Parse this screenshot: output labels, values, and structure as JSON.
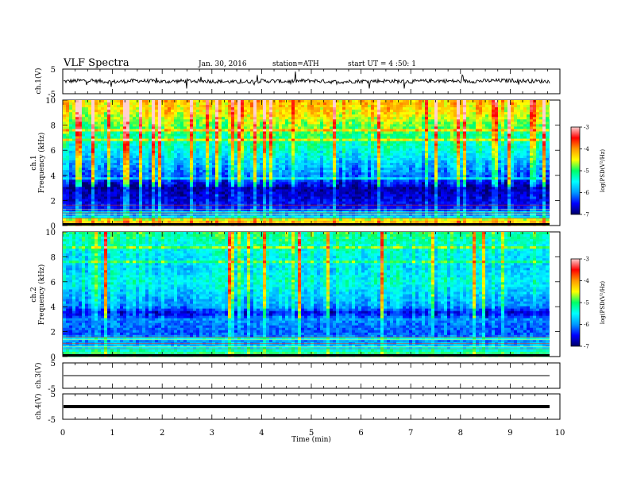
{
  "header": {
    "title": "VLF Spectra",
    "date": "Jan. 30, 2016",
    "station": "station=ATH",
    "start": "start UT =  4 :50: 1"
  },
  "chart_data": [
    {
      "type": "line",
      "panel": "ch1-waveform",
      "ylabel": "ch.1(V)",
      "ylim": [
        -5,
        5
      ],
      "yticks": [
        "5",
        "-5"
      ],
      "x": [
        0,
        0.5,
        1,
        1.5,
        2,
        2.5,
        3,
        3.5,
        4,
        4.5,
        5,
        5.5,
        6,
        6.5,
        7,
        7.5,
        8,
        8.5,
        9,
        9.5,
        9.8
      ],
      "values": [
        0,
        0.4,
        -0.2,
        0.3,
        -0.1,
        0.2,
        0.1,
        -0.3,
        0.2,
        0.0,
        0.3,
        -0.2,
        0.1,
        0.2,
        -0.1,
        0.3,
        0.0,
        0.2,
        0.4,
        0.1,
        0.0
      ]
    },
    {
      "type": "heatmap",
      "panel": "ch1-spectrogram",
      "ylabel": "ch.1\nFrequency (kHz)",
      "ylim": [
        0,
        10
      ],
      "yticks": [
        "0",
        "2",
        "4",
        "6",
        "8",
        "10"
      ],
      "colorbar": {
        "label": "log(PSD(V²/Hz)",
        "range": [
          -7,
          -3
        ],
        "ticks": [
          "-3",
          "-4",
          "-5",
          "-6",
          "-7"
        ]
      },
      "profile": {
        "freq_khz": [
          0,
          1,
          2,
          3,
          3.5,
          4,
          5,
          6,
          7,
          8,
          9,
          10
        ],
        "mean_log_psd": [
          -4.2,
          -6.3,
          -6.6,
          -6.8,
          -6.4,
          -6.1,
          -5.8,
          -5.4,
          -5.1,
          -4.8,
          -4.4,
          -4.2
        ]
      }
    },
    {
      "type": "heatmap",
      "panel": "ch2-spectrogram",
      "ylabel": "ch.2\nFrequency (kHz)",
      "ylim": [
        0,
        10
      ],
      "yticks": [
        "0",
        "2",
        "4",
        "6",
        "8",
        "10"
      ],
      "colorbar": {
        "label": "log(PSD(V²/Hz)",
        "range": [
          -7,
          -3
        ],
        "ticks": [
          "-3",
          "-4",
          "-5",
          "-6",
          "-7"
        ]
      },
      "profile": {
        "freq_khz": [
          0,
          1,
          2,
          3,
          3.5,
          4,
          5,
          6,
          7,
          8,
          9,
          10
        ],
        "mean_log_psd": [
          -4.8,
          -5.9,
          -6.2,
          -6.0,
          -6.5,
          -5.9,
          -5.7,
          -5.4,
          -5.6,
          -5.5,
          -5.3,
          -5.0
        ]
      }
    },
    {
      "type": "line",
      "panel": "ch3-waveform",
      "ylabel": "ch.3(V)",
      "ylim": [
        -5,
        5
      ],
      "yticks": [
        "5",
        "-5"
      ],
      "x": [
        0,
        9.8
      ],
      "values": [
        0,
        0
      ]
    },
    {
      "type": "line",
      "panel": "ch4-waveform",
      "ylabel": "ch.4(V)",
      "ylim": [
        -5,
        5
      ],
      "yticks": [
        "5",
        "-5"
      ],
      "x": [
        0,
        9.8
      ],
      "values": [
        0,
        0
      ]
    }
  ],
  "xaxis": {
    "label": "Time (min)",
    "xlim": [
      0,
      10
    ],
    "ticks": [
      "0",
      "1",
      "2",
      "3",
      "4",
      "5",
      "6",
      "7",
      "8",
      "9",
      "10"
    ]
  },
  "colors": {
    "axes": "#000000",
    "background": "#ffffff",
    "colormap": [
      "#000066",
      "#0000ff",
      "#0099ff",
      "#00ffff",
      "#00ff66",
      "#ffff00",
      "#ff9900",
      "#ff0000",
      "#ffd0d0"
    ]
  }
}
